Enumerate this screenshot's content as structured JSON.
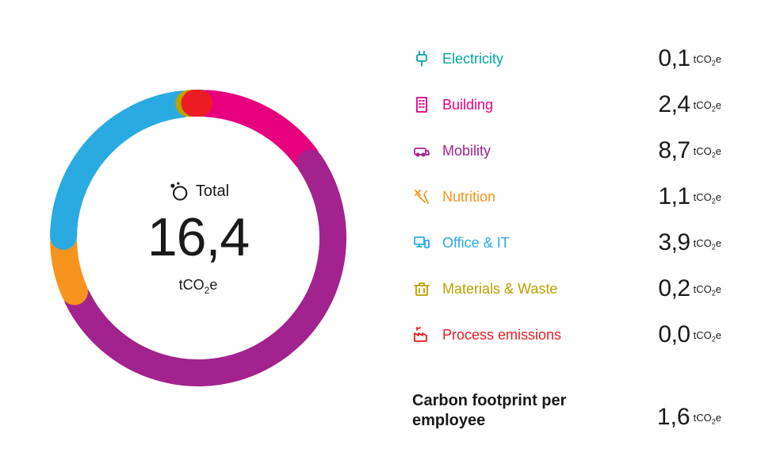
{
  "chart": {
    "type": "donut",
    "total_label": "Total",
    "total_value": "16,4",
    "unit_html": "tCO<sub>2</sub>e",
    "background_color": "#ffffff",
    "stroke_width": 34,
    "gap_degrees": 3,
    "rounded_caps": true,
    "radius": 170,
    "start_angle": -90,
    "categories": [
      {
        "id": "electricity",
        "label": "Electricity",
        "value_text": "0,1",
        "value": 0.1,
        "color": "#00a79d",
        "icon": "plug"
      },
      {
        "id": "building",
        "label": "Building",
        "value_text": "2,4",
        "value": 2.4,
        "color": "#e6007e",
        "icon": "building"
      },
      {
        "id": "mobility",
        "label": "Mobility",
        "value_text": "8,7",
        "value": 8.7,
        "color": "#a3238e",
        "icon": "mobility"
      },
      {
        "id": "nutrition",
        "label": "Nutrition",
        "value_text": "1,1",
        "value": 1.1,
        "color": "#f7941d",
        "icon": "nutrition"
      },
      {
        "id": "office_it",
        "label": "Office & IT",
        "value_text": "3,9",
        "value": 3.9,
        "color": "#29abe2",
        "icon": "office"
      },
      {
        "id": "materials_waste",
        "label": "Materials & Waste",
        "value_text": "0,2",
        "value": 0.2,
        "color": "#b8a200",
        "icon": "waste"
      },
      {
        "id": "process_emissions",
        "label": "Process emissions",
        "value_text": "0,0",
        "value": 0.0,
        "color": "#ed1c24",
        "icon": "factory"
      }
    ]
  },
  "footer": {
    "label": "Carbon footprint per employee",
    "value_text": "1,6"
  },
  "style": {
    "legend_label_fontsize": 18,
    "legend_value_fontsize": 30,
    "total_value_fontsize": 68,
    "footer_label_fontsize": 20,
    "text_color": "#1a1a1a"
  }
}
